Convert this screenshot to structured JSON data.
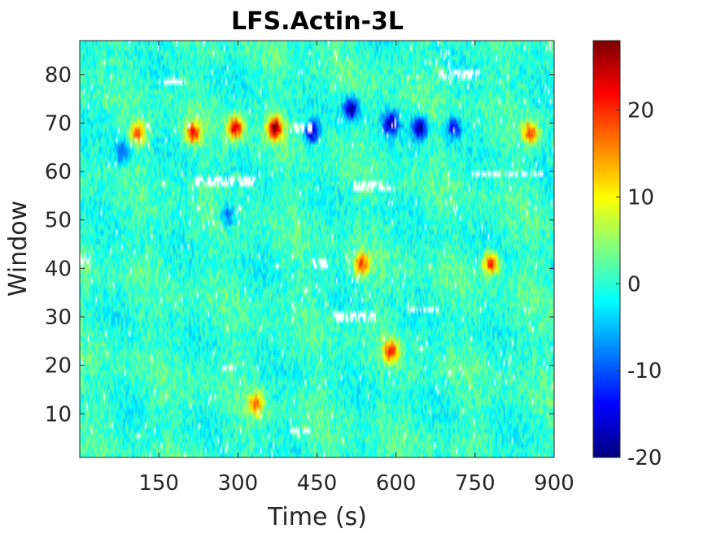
{
  "chart_data": {
    "type": "heatmap",
    "title": "LFS.Actin-3L",
    "xlabel": "Time (s)",
    "ylabel": "Window",
    "xlim": [
      0,
      900
    ],
    "ylim": [
      1,
      87
    ],
    "x_ticks": [
      150,
      300,
      450,
      600,
      750,
      900
    ],
    "y_ticks": [
      10,
      20,
      30,
      40,
      50,
      60,
      70,
      80
    ],
    "colormap": "jet",
    "clim": [
      -20,
      28
    ],
    "colorbar_ticks": [
      -20,
      -10,
      0,
      10,
      20
    ],
    "missing_value_color": "#ffffff",
    "background_level": 0,
    "features": [
      {
        "time": 370,
        "window": 69,
        "value": 28
      },
      {
        "time": 295,
        "window": 69,
        "value": 24
      },
      {
        "time": 215,
        "window": 68,
        "value": 20
      },
      {
        "time": 110,
        "window": 68,
        "value": 18
      },
      {
        "time": 780,
        "window": 41,
        "value": 22
      },
      {
        "time": 590,
        "window": 23,
        "value": 20
      },
      {
        "time": 535,
        "window": 41,
        "value": 18
      },
      {
        "time": 335,
        "window": 12,
        "value": 16
      },
      {
        "time": 855,
        "window": 68,
        "value": 18
      },
      {
        "time": 515,
        "window": 73,
        "value": -20
      },
      {
        "time": 645,
        "window": 69,
        "value": -20
      },
      {
        "time": 590,
        "window": 70,
        "value": -18
      },
      {
        "time": 440,
        "window": 68,
        "value": -16
      },
      {
        "time": 710,
        "window": 69,
        "value": -14
      },
      {
        "time": 80,
        "window": 64,
        "value": -12
      },
      {
        "time": 280,
        "window": 51,
        "value": -10
      }
    ],
    "missing_bands": [
      {
        "time": [
          220,
          330
        ],
        "window": [
          57,
          59
        ]
      },
      {
        "time": [
          520,
          600
        ],
        "window": [
          56,
          58
        ]
      },
      {
        "time": [
          740,
          880
        ],
        "window": [
          59,
          60
        ]
      },
      {
        "time": [
          160,
          200
        ],
        "window": [
          78,
          79
        ]
      },
      {
        "time": [
          680,
          760
        ],
        "window": [
          79,
          81
        ]
      },
      {
        "time": [
          400,
          440
        ],
        "window": [
          68,
          70
        ]
      },
      {
        "time": [
          0,
          20
        ],
        "window": [
          40,
          43
        ]
      },
      {
        "time": [
          440,
          470
        ],
        "window": [
          40,
          42
        ]
      },
      {
        "time": [
          480,
          560
        ],
        "window": [
          29,
          31
        ]
      },
      {
        "time": [
          620,
          680
        ],
        "window": [
          31,
          32
        ]
      },
      {
        "time": [
          270,
          300
        ],
        "window": [
          19,
          20
        ]
      },
      {
        "time": [
          400,
          440
        ],
        "window": [
          6,
          7
        ]
      }
    ]
  }
}
